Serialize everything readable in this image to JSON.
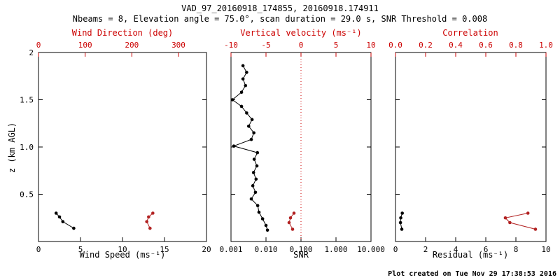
{
  "title": "VAD_97_20160918_174855, 20160918.174911",
  "subtitle": "Nbeams = 8, Elevation angle = 75.0°, scan duration = 29.0 s, SNR Threshold = 0.008",
  "ylabel": "z (km AGL)",
  "footer": "Plot created on Tue Nov 29 17:38:53 2016",
  "colors": {
    "axis_red": "#cc0000",
    "data_red": "#b22222",
    "black": "#000000"
  },
  "chart_data": [
    {
      "type": "scatter",
      "xlabel": "Wind Speed (ms⁻¹)",
      "xlabel_top": "Wind Direction (deg)",
      "ylabel": "z (km AGL)",
      "xlim": [
        0,
        20
      ],
      "xlim_top": [
        0,
        360
      ],
      "ylim": [
        0,
        2
      ],
      "xscale": "linear",
      "x_ticks": [
        {
          "v": 0,
          "label": "0"
        },
        {
          "v": 5,
          "label": "5"
        },
        {
          "v": 10,
          "label": "10"
        },
        {
          "v": 15,
          "label": "15"
        },
        {
          "v": 20,
          "label": "20"
        }
      ],
      "x_ticks_top": [
        {
          "v": 0,
          "label": "0"
        },
        {
          "v": 100,
          "label": "100"
        },
        {
          "v": 200,
          "label": "200"
        },
        {
          "v": 300,
          "label": "300"
        }
      ],
      "y_ticks": [
        {
          "v": 0,
          "label": ""
        },
        {
          "v": 0.5,
          "label": "0.5"
        },
        {
          "v": 1.0,
          "label": "1.0"
        },
        {
          "v": 1.5,
          "label": "1.5"
        },
        {
          "v": 2.0,
          "label": "2"
        }
      ],
      "series": [
        {
          "name": "wind-speed",
          "axis": "bottom",
          "color": "#000000",
          "points": [
            [
              2.1,
              0.3
            ],
            [
              2.5,
              0.26
            ],
            [
              2.9,
              0.21
            ],
            [
              4.2,
              0.14
            ]
          ]
        },
        {
          "name": "wind-direction",
          "axis": "top",
          "color": "#b22222",
          "points": [
            [
              245,
              0.3
            ],
            [
              236,
              0.26
            ],
            [
              232,
              0.21
            ],
            [
              239,
              0.14
            ]
          ]
        }
      ]
    },
    {
      "type": "scatter",
      "xlabel": "SNR",
      "xlabel_top": "Vertical velocity (ms⁻¹)",
      "xlim": [
        0.001,
        10.0
      ],
      "xlim_top": [
        -10,
        10
      ],
      "ylim": [
        0,
        2
      ],
      "xscale": "log",
      "vline_top": 0,
      "x_ticks": [
        {
          "v": 0.001,
          "label": "0.001"
        },
        {
          "v": 0.01,
          "label": "0.010"
        },
        {
          "v": 0.1,
          "label": "0.100"
        },
        {
          "v": 1.0,
          "label": "1.000"
        },
        {
          "v": 10.0,
          "label": "10.000"
        }
      ],
      "x_ticks_top": [
        {
          "v": -10,
          "label": "-10"
        },
        {
          "v": -5,
          "label": "-5"
        },
        {
          "v": 0,
          "label": "0"
        },
        {
          "v": 5,
          "label": "5"
        },
        {
          "v": 10,
          "label": "10"
        }
      ],
      "y_ticks": [
        {
          "v": 0,
          "label": ""
        },
        {
          "v": 0.5,
          "label": ""
        },
        {
          "v": 1.0,
          "label": ""
        },
        {
          "v": 1.5,
          "label": ""
        },
        {
          "v": 2.0,
          "label": ""
        }
      ],
      "series": [
        {
          "name": "snr-profile",
          "axis": "bottom",
          "color": "#000000",
          "points": [
            [
              0.0022,
              1.86
            ],
            [
              0.0028,
              1.79
            ],
            [
              0.0022,
              1.72
            ],
            [
              0.0026,
              1.65
            ],
            [
              0.002,
              1.58
            ],
            [
              0.0011,
              1.5
            ],
            [
              0.002,
              1.43
            ],
            [
              0.0028,
              1.36
            ],
            [
              0.004,
              1.29
            ],
            [
              0.0032,
              1.22
            ],
            [
              0.0045,
              1.15
            ],
            [
              0.0038,
              1.08
            ],
            [
              0.0012,
              1.01
            ],
            [
              0.0057,
              0.94
            ],
            [
              0.0046,
              0.87
            ],
            [
              0.0055,
              0.8
            ],
            [
              0.0044,
              0.73
            ],
            [
              0.0052,
              0.66
            ],
            [
              0.0042,
              0.59
            ],
            [
              0.005,
              0.52
            ],
            [
              0.0038,
              0.45
            ],
            [
              0.0058,
              0.38
            ],
            [
              0.0063,
              0.31
            ],
            [
              0.008,
              0.24
            ],
            [
              0.01,
              0.17
            ],
            [
              0.011,
              0.12
            ]
          ]
        },
        {
          "name": "vertical-velocity",
          "axis": "top",
          "color": "#b22222",
          "points": [
            [
              -1.0,
              0.3
            ],
            [
              -1.5,
              0.25
            ],
            [
              -1.7,
              0.2
            ],
            [
              -1.2,
              0.13
            ]
          ]
        }
      ]
    },
    {
      "type": "scatter",
      "xlabel": "Residual (ms⁻¹)",
      "xlabel_top": "Correlation",
      "xlim": [
        0,
        10
      ],
      "xlim_top": [
        0.0,
        1.0
      ],
      "ylim": [
        0,
        2
      ],
      "xscale": "linear",
      "x_ticks": [
        {
          "v": 0,
          "label": "0"
        },
        {
          "v": 2,
          "label": "2"
        },
        {
          "v": 4,
          "label": "4"
        },
        {
          "v": 6,
          "label": "6"
        },
        {
          "v": 8,
          "label": "8"
        },
        {
          "v": 10,
          "label": "10"
        }
      ],
      "x_ticks_top": [
        {
          "v": 0.0,
          "label": "0.0"
        },
        {
          "v": 0.2,
          "label": "0.2"
        },
        {
          "v": 0.4,
          "label": "0.4"
        },
        {
          "v": 0.6,
          "label": "0.6"
        },
        {
          "v": 0.8,
          "label": "0.8"
        },
        {
          "v": 1.0,
          "label": "1.0"
        }
      ],
      "y_ticks": [
        {
          "v": 0,
          "label": ""
        },
        {
          "v": 0.5,
          "label": ""
        },
        {
          "v": 1.0,
          "label": ""
        },
        {
          "v": 1.5,
          "label": ""
        },
        {
          "v": 2.0,
          "label": ""
        }
      ],
      "series": [
        {
          "name": "residual",
          "axis": "bottom",
          "color": "#000000",
          "points": [
            [
              0.45,
              0.3
            ],
            [
              0.35,
              0.25
            ],
            [
              0.33,
              0.2
            ],
            [
              0.42,
              0.13
            ]
          ]
        },
        {
          "name": "correlation",
          "axis": "top",
          "color": "#b22222",
          "points": [
            [
              0.88,
              0.3
            ],
            [
              0.73,
              0.25
            ],
            [
              0.76,
              0.2
            ],
            [
              0.93,
              0.13
            ]
          ]
        }
      ]
    }
  ]
}
